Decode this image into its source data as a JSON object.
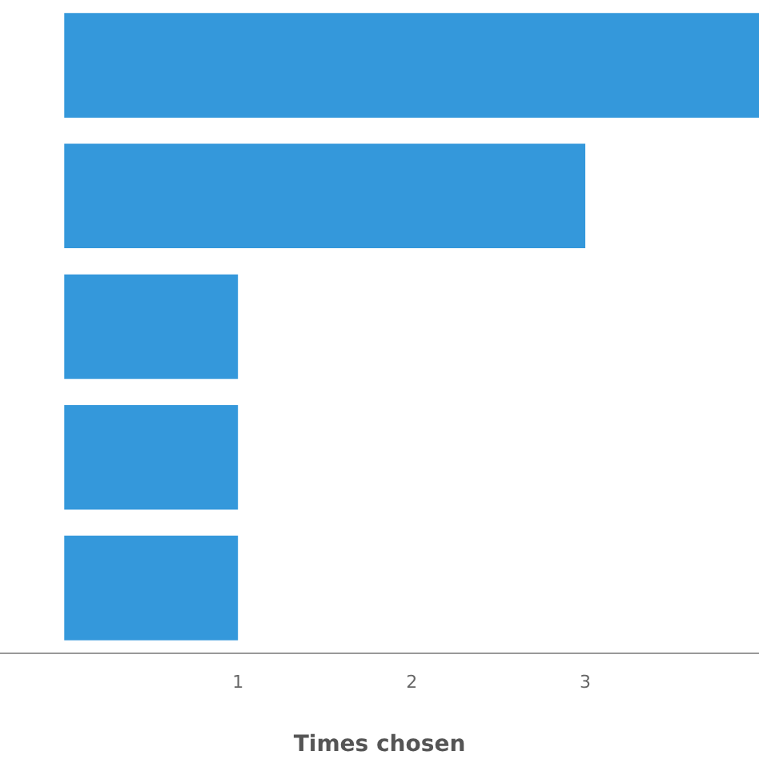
{
  "chart_data": {
    "type": "bar",
    "orientation": "horizontal",
    "xlabel": "Times chosen",
    "categories": [
      null,
      null,
      null,
      null,
      null
    ],
    "values": [
      4,
      3,
      1,
      1,
      1
    ],
    "color": "#3498db",
    "xlim": [
      -0.37,
      4
    ],
    "xticks": [
      1,
      2,
      3
    ],
    "grid": false,
    "legend": false
  }
}
